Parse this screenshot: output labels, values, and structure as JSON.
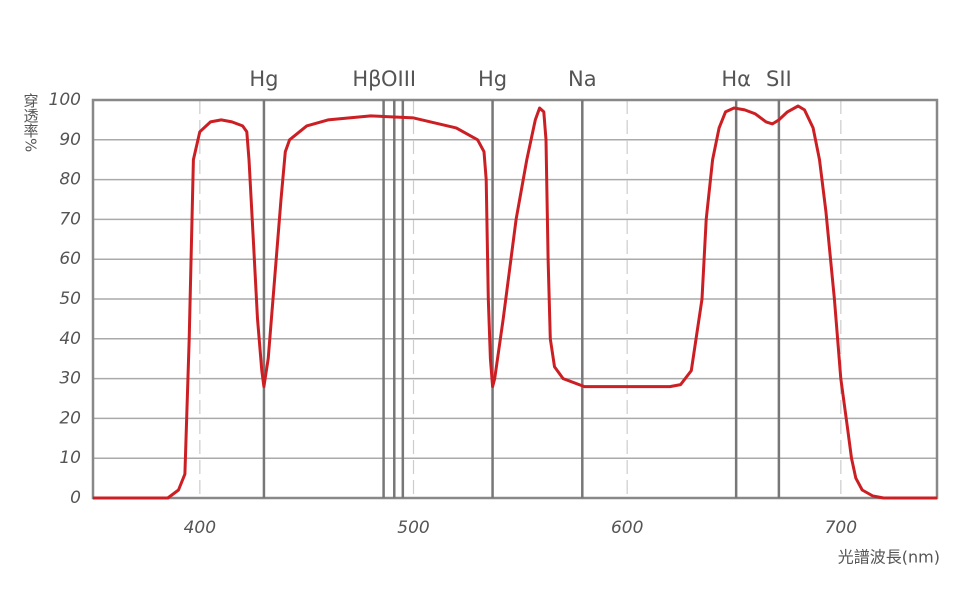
{
  "chart_data": {
    "type": "line",
    "y_label": "穿透率%",
    "x_label": "光譜波長(nm)",
    "xlim": [
      350,
      745
    ],
    "ylim": [
      0,
      100
    ],
    "xticks": [
      400,
      500,
      600,
      700
    ],
    "yticks": [
      0,
      10,
      20,
      30,
      40,
      50,
      60,
      70,
      80,
      90,
      100
    ],
    "grid": true,
    "emission_lines": [
      {
        "label": "Hg",
        "x": [
          430
        ]
      },
      {
        "label": "Hβ",
        "x": [
          486
        ]
      },
      {
        "label": "OIII",
        "x": [
          491,
          495
        ]
      },
      {
        "label": "Hg",
        "x": [
          537
        ]
      },
      {
        "label": "Na",
        "x": [
          579
        ]
      },
      {
        "label": "Hα",
        "x": [
          651
        ]
      },
      {
        "label": "SII",
        "x": [
          671
        ]
      }
    ],
    "series": [
      {
        "color": "#cc1f24",
        "x": [
          350,
          385,
          390,
          393,
          395,
          397,
          400,
          405,
          410,
          415,
          420,
          422,
          423,
          425,
          427,
          429,
          430,
          432,
          435,
          438,
          440,
          442,
          450,
          460,
          480,
          500,
          520,
          530,
          533,
          534,
          535,
          536,
          537,
          538,
          542,
          548,
          553,
          557,
          559,
          561,
          562,
          563,
          564,
          566,
          570,
          580,
          620,
          625,
          630,
          635,
          637,
          640,
          643,
          646,
          650,
          655,
          660,
          665,
          668,
          671,
          675,
          680,
          683,
          687,
          690,
          693,
          697,
          700,
          703,
          705,
          707,
          710,
          715,
          720,
          745
        ],
        "values": [
          0,
          0,
          2,
          6,
          40,
          85,
          92,
          94.5,
          95,
          94.5,
          93.5,
          92,
          85,
          65,
          45,
          32,
          28,
          35,
          55,
          75,
          87,
          90,
          93.5,
          95,
          96,
          95.5,
          93,
          90,
          87,
          80,
          50,
          35,
          28,
          30,
          45,
          70,
          85,
          95,
          98,
          97,
          90,
          60,
          40,
          33,
          30,
          28,
          28,
          28.5,
          32,
          50,
          70,
          85,
          93,
          97,
          98,
          97.5,
          96.5,
          94.5,
          94,
          95,
          97,
          98.5,
          97.5,
          93,
          85,
          72,
          50,
          30,
          18,
          10,
          5,
          2,
          0.5,
          0,
          0
        ]
      }
    ]
  }
}
